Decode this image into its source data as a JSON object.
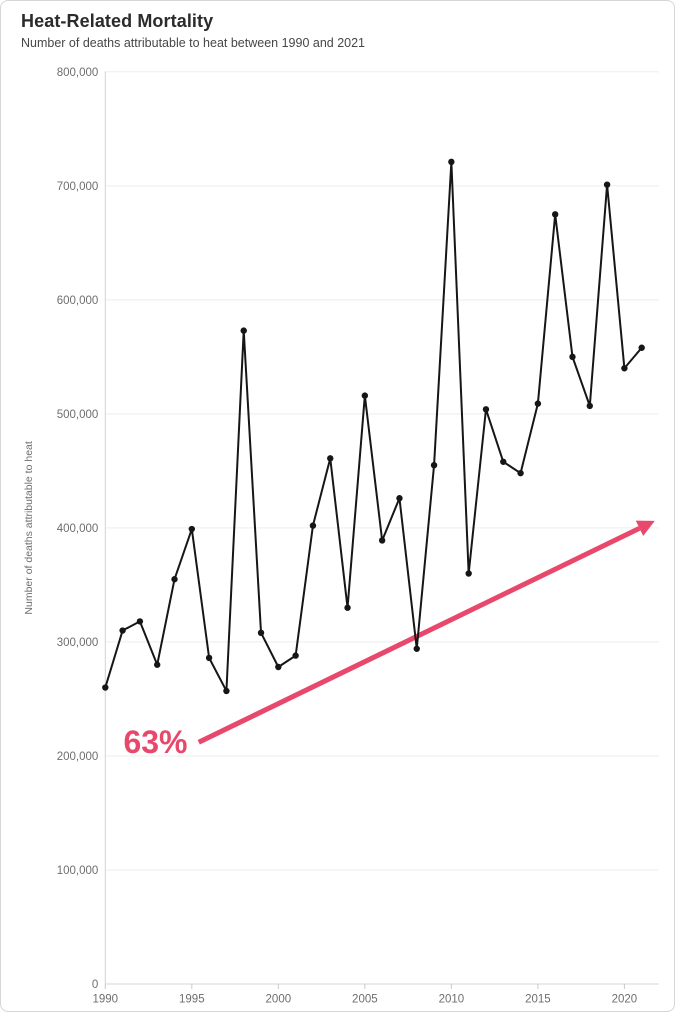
{
  "header": {
    "title": "Heat-Related Mortality",
    "subtitle": "Number of deaths attributable to heat between 1990 and 2021"
  },
  "chart_data": {
    "type": "line",
    "title": "Heat-Related Mortality",
    "subtitle": "Number of deaths attributable to heat between 1990 and 2021",
    "xlabel": "",
    "ylabel": "Number of deaths attributable to heat",
    "x": [
      1990,
      1991,
      1992,
      1993,
      1994,
      1995,
      1996,
      1997,
      1998,
      1999,
      2000,
      2001,
      2002,
      2003,
      2004,
      2005,
      2006,
      2007,
      2008,
      2009,
      2010,
      2011,
      2012,
      2013,
      2014,
      2015,
      2016,
      2017,
      2018,
      2019,
      2020,
      2021
    ],
    "values": [
      260000,
      310000,
      318000,
      280000,
      355000,
      399000,
      286000,
      257000,
      573000,
      308000,
      278000,
      288000,
      402000,
      461000,
      330000,
      516000,
      389000,
      426000,
      294000,
      455000,
      721000,
      360000,
      504000,
      458000,
      448000,
      509000,
      675000,
      550000,
      507000,
      701000,
      540000,
      558000
    ],
    "x_ticks": [
      1990,
      1995,
      2000,
      2005,
      2010,
      2015,
      2020
    ],
    "y_ticks": [
      0,
      100000,
      200000,
      300000,
      400000,
      500000,
      600000,
      700000,
      800000
    ],
    "xlim": [
      1990,
      2022
    ],
    "ylim": [
      0,
      800000
    ],
    "grid": "horizontal",
    "legend": "none",
    "line_color": "#161616",
    "point_color": "#161616",
    "axis_color": "#d4d4d4",
    "grid_color": "#ededed",
    "tick_label_color": "#6e6e6e",
    "annotation": {
      "label": "63%",
      "color": "#e8486c",
      "arrow_from": {
        "year": 1995.4,
        "value": 212000
      },
      "arrow_to": {
        "year": 2021.6,
        "value": 405000
      },
      "label_pos": {
        "year": 1992.9,
        "value": 202500
      }
    }
  }
}
